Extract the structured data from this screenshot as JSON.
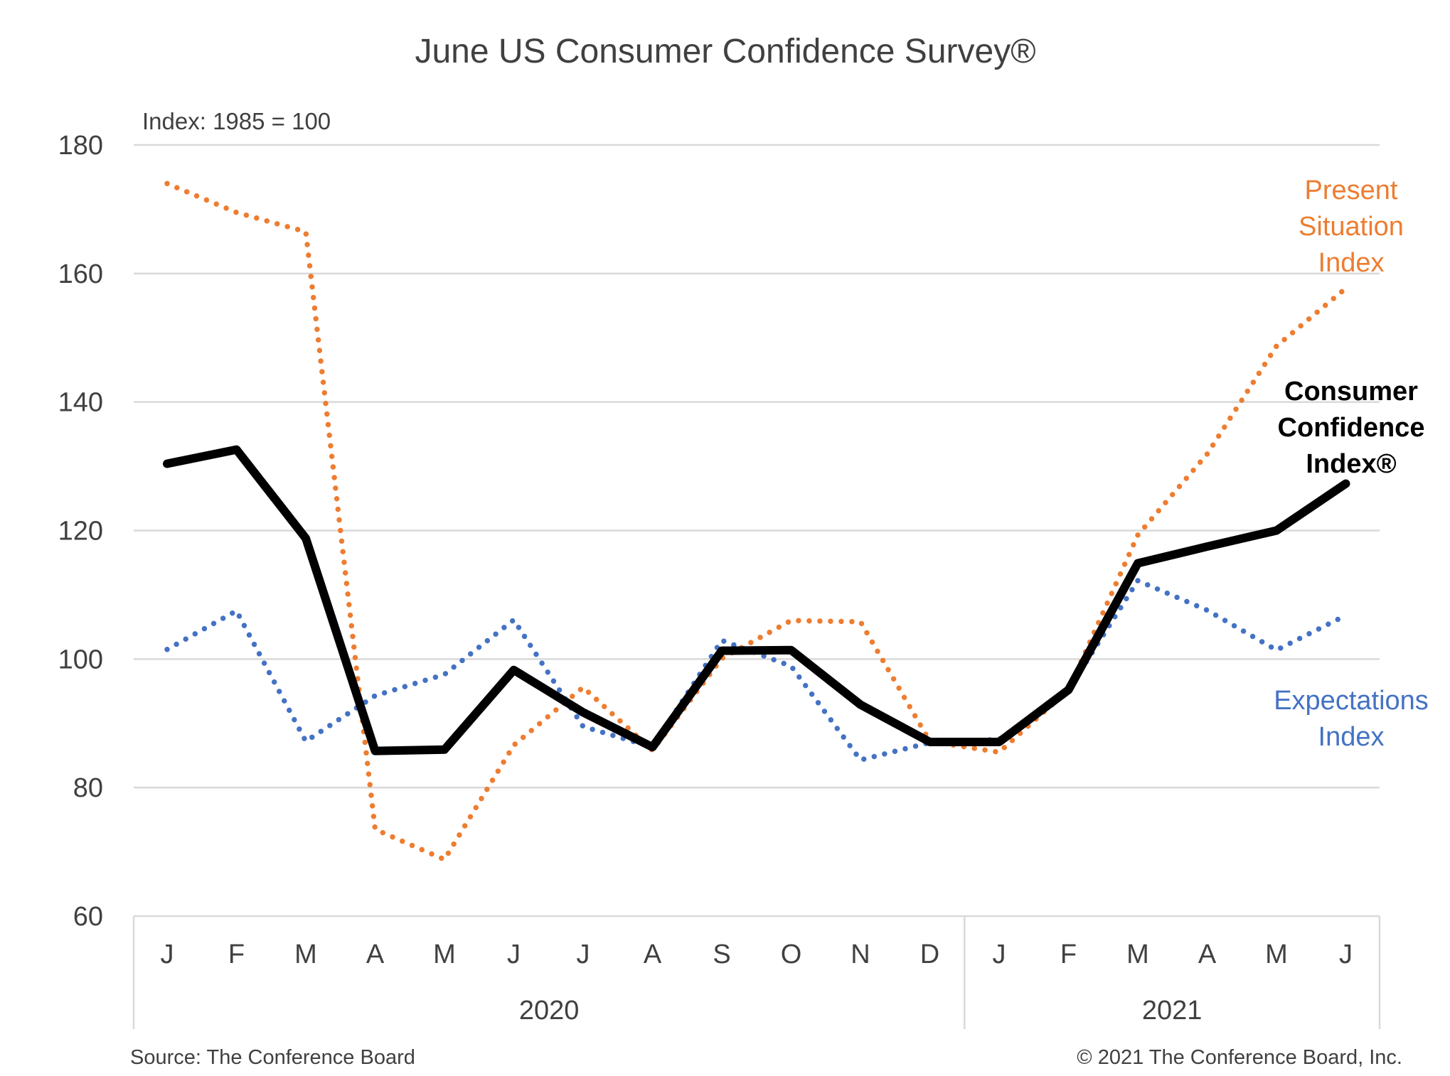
{
  "chart_data": {
    "type": "line",
    "title": "June US Consumer Confidence Survey®",
    "note": "Index: 1985 = 100",
    "ylim": [
      60,
      180
    ],
    "yticks": [
      60,
      80,
      100,
      120,
      140,
      160,
      180
    ],
    "grid": true,
    "categories": [
      "J",
      "F",
      "M",
      "A",
      "M",
      "J",
      "J",
      "A",
      "S",
      "O",
      "N",
      "D",
      "J",
      "F",
      "M",
      "A",
      "M",
      "J"
    ],
    "years": [
      {
        "label": "2020",
        "start": 0,
        "end": 11
      },
      {
        "label": "2021",
        "start": 12,
        "end": 17
      }
    ],
    "series": [
      {
        "key": "present",
        "name_lines": [
          "Present",
          "Situation",
          "Index"
        ],
        "color": "#ED7D31",
        "style": "dotted",
        "values": [
          174,
          169.5,
          166.5,
          73.5,
          68.8,
          86.6,
          95.6,
          85.8,
          100.1,
          106,
          105.8,
          87.2,
          85.5,
          95.2,
          119.3,
          131.9,
          148.7,
          157.7
        ]
      },
      {
        "key": "expectations",
        "name_lines": [
          "Expectations",
          "Index"
        ],
        "color": "#4472C4",
        "style": "dotted",
        "values": [
          101.5,
          107.5,
          87.2,
          94.3,
          97.6,
          106.1,
          89.5,
          86.3,
          102.9,
          98.9,
          84.3,
          87,
          87.5,
          95.2,
          112.2,
          107.6,
          101.4,
          106.8
        ]
      },
      {
        "key": "consumer",
        "name_lines": [
          "Consumer",
          "Confidence",
          "Index®"
        ],
        "color": "#000000",
        "style": "solid",
        "values": [
          130.4,
          132.6,
          118.8,
          85.7,
          85.9,
          98.3,
          91.7,
          86.3,
          101.3,
          101.4,
          92.9,
          87.1,
          87.1,
          95.2,
          114.9,
          117.5,
          120,
          127.3
        ]
      }
    ]
  },
  "footer": {
    "source": "Source: The Conference Board",
    "copyright": "© 2021 The Conference Board, Inc."
  }
}
